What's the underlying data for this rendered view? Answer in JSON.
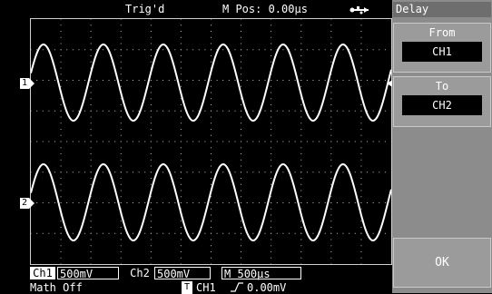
{
  "status_bar": {
    "trigger_state": "Trig'd",
    "m_pos": "M Pos: 0.00μs",
    "usb_icon": "usb-icon"
  },
  "menu": {
    "title": "Delay",
    "from_label": "From",
    "from_value": "CH1",
    "to_label": "To",
    "to_value": "CH2",
    "ok_label": "OK"
  },
  "channels": {
    "ch1_label": "Ch1",
    "ch1_scale": "500mV",
    "ch2_label": "Ch2",
    "ch2_scale": "500mV",
    "timebase_label": "M",
    "timebase_value": "500μs",
    "math_status": "Math  Off",
    "trigger_icon": "T",
    "trigger_source": "CH1",
    "trigger_level": "0.00mV"
  },
  "markers": {
    "ch1_marker": "1",
    "ch2_marker": "2"
  },
  "colors": {
    "screen_bg": "#000000",
    "trace": "#ffffff",
    "menu_bg": "#8c8c8c"
  }
}
